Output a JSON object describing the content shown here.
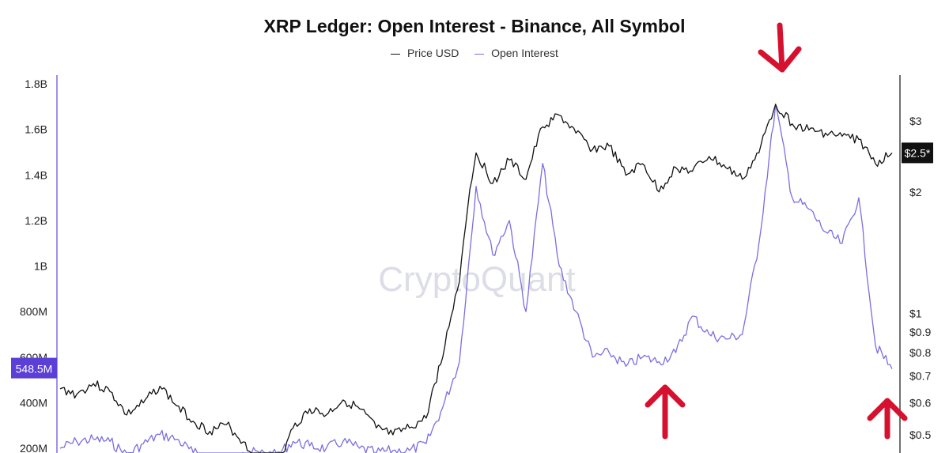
{
  "chart_data": {
    "type": "line",
    "title": "XRP Ledger: Open Interest - Binance, All Symbol",
    "legend": [
      "Price USD",
      "Open Interest"
    ],
    "legend_position": "top-center",
    "watermark": "CryptoQuant",
    "colors": {
      "price": "#111111",
      "open_interest": "#7b6ee0",
      "oi_badge": "#5b3fd6",
      "price_badge": "#111111",
      "annotation_arrows": "#d6102f"
    },
    "y_left": {
      "ticks": [
        {
          "value": 1800000000,
          "label": "1.8B"
        },
        {
          "value": 1600000000,
          "label": "1.6B"
        },
        {
          "value": 1400000000,
          "label": "1.4B"
        },
        {
          "value": 1200000000,
          "label": "1.2B"
        },
        {
          "value": 1000000000,
          "label": "1B"
        },
        {
          "value": 800000000,
          "label": "800M"
        },
        {
          "value": 600000000,
          "label": "600M"
        },
        {
          "value": 400000000,
          "label": "400M"
        },
        {
          "value": 200000000,
          "label": "200M"
        }
      ],
      "range": [
        200000000,
        1850000000
      ],
      "badge": {
        "value": 548500000,
        "label": "548.5M"
      }
    },
    "y_right": {
      "scale": "log",
      "ticks": [
        {
          "value": 3,
          "label": "$3"
        },
        {
          "value": 2,
          "label": "$2"
        },
        {
          "value": 1,
          "label": "$1"
        },
        {
          "value": 0.9,
          "label": "$0.9"
        },
        {
          "value": 0.8,
          "label": "$0.8"
        },
        {
          "value": 0.7,
          "label": "$0.7"
        },
        {
          "value": 0.6,
          "label": "$0.6"
        },
        {
          "value": 0.5,
          "label": "$0.5"
        }
      ],
      "badge": {
        "value": 2.5,
        "label": "$2.5*"
      }
    },
    "x": [
      0,
      2,
      4,
      6,
      8,
      10,
      12,
      14,
      16,
      18,
      20,
      22,
      24,
      26,
      28,
      30,
      32,
      34,
      36,
      38,
      40,
      42,
      44,
      46,
      48,
      50,
      52,
      54,
      56,
      58,
      60,
      62,
      64,
      66,
      68,
      70,
      72,
      74,
      76,
      78,
      80,
      82,
      84,
      86,
      88,
      90,
      92,
      94,
      96,
      98,
      100
    ],
    "series": [
      {
        "name": "Price USD",
        "axis": "right",
        "values": [
          0.65,
          0.63,
          0.67,
          0.64,
          0.56,
          0.6,
          0.66,
          0.59,
          0.54,
          0.51,
          0.53,
          0.48,
          0.42,
          0.4,
          0.52,
          0.58,
          0.56,
          0.61,
          0.58,
          0.52,
          0.5,
          0.52,
          0.55,
          0.78,
          1.2,
          2.5,
          2.1,
          2.4,
          2.15,
          2.9,
          3.1,
          2.8,
          2.55,
          2.6,
          2.2,
          2.35,
          2.0,
          2.3,
          2.25,
          2.45,
          2.3,
          2.15,
          2.5,
          3.3,
          2.95,
          2.85,
          2.8,
          2.75,
          2.7,
          2.35,
          2.5
        ]
      },
      {
        "name": "Open Interest",
        "axis": "left",
        "values": [
          200000000,
          230000000,
          240000000,
          230000000,
          170000000,
          220000000,
          260000000,
          240000000,
          180000000,
          160000000,
          150000000,
          180000000,
          180000000,
          170000000,
          230000000,
          210000000,
          200000000,
          230000000,
          200000000,
          180000000,
          190000000,
          190000000,
          220000000,
          380000000,
          580000000,
          1350000000,
          1050000000,
          1200000000,
          800000000,
          1450000000,
          1000000000,
          800000000,
          600000000,
          620000000,
          560000000,
          600000000,
          580000000,
          620000000,
          780000000,
          700000000,
          680000000,
          700000000,
          1100000000,
          1710000000,
          1300000000,
          1250000000,
          1150000000,
          1100000000,
          1300000000,
          650000000,
          548500000
        ]
      }
    ],
    "annotations": [
      {
        "type": "arrow-down",
        "x": 44,
        "note": ""
      },
      {
        "type": "arrow-up",
        "x": 36,
        "note": ""
      },
      {
        "type": "arrow-up",
        "x": 98,
        "note": ""
      }
    ]
  }
}
